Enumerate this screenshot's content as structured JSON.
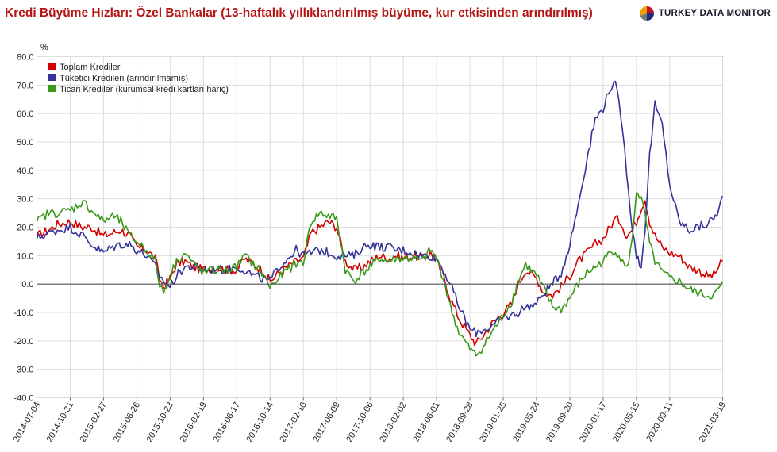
{
  "title": "Kredi Büyüme Hızları: Özel Bankalar (13-haftalık yıllıklandırılmış büyüme, kur etkisinden arındırılmış)",
  "brand": {
    "name": "TURKEY DATA MONITOR",
    "logo_icon": "pie-logo-icon",
    "logo_colors": [
      "#c8102e",
      "#1f2d7a",
      "#7a7a7a",
      "#f0a000"
    ]
  },
  "chart_data": {
    "type": "line",
    "title": "Kredi Büyüme Hızları: Özel Bankalar (13-haftalık yıllıklandırılmış büyüme, kur etkisinden arındırılmış)",
    "ylabel": "%",
    "xlabel": "",
    "ylim": [
      -40,
      80
    ],
    "yticks": [
      "80.0",
      "70.0",
      "60.0",
      "50.0",
      "40.0",
      "30.0",
      "20.0",
      "10.0",
      "0.0",
      "-10.0",
      "-20.0",
      "-30.0",
      "-40.0"
    ],
    "xlim": [
      "2014-07-04",
      "2021-03-19"
    ],
    "xticks": [
      "2014-07-04",
      "2014-10-31",
      "2015-02-27",
      "2015-06-26",
      "2015-10-23",
      "2016-02-19",
      "2016-06-17",
      "2016-10-14",
      "2017-02-10",
      "2017-06-09",
      "2017-10-06",
      "2018-02-02",
      "2018-06-01",
      "2018-09-28",
      "2019-01-25",
      "2019-05-24",
      "2019-09-20",
      "2020-01-17",
      "2020-05-15",
      "2020-09-11",
      "2021-03-19"
    ],
    "grid": true,
    "legend_position": "top-left",
    "series": [
      {
        "name": "Toplam Krediler",
        "color": "#d40000",
        "points": [
          [
            "2014-07-04",
            17
          ],
          [
            "2014-08-15",
            19
          ],
          [
            "2014-09-15",
            21
          ],
          [
            "2014-10-31",
            22
          ],
          [
            "2014-12-15",
            20
          ],
          [
            "2015-01-15",
            20
          ],
          [
            "2015-02-27",
            17
          ],
          [
            "2015-03-31",
            18
          ],
          [
            "2015-04-30",
            19
          ],
          [
            "2015-05-31",
            17
          ],
          [
            "2015-06-26",
            13
          ],
          [
            "2015-07-31",
            12
          ],
          [
            "2015-08-31",
            9
          ],
          [
            "2015-09-15",
            2
          ],
          [
            "2015-09-30",
            -1
          ],
          [
            "2015-10-23",
            2
          ],
          [
            "2015-11-15",
            7
          ],
          [
            "2015-12-15",
            8
          ],
          [
            "2016-01-15",
            6
          ],
          [
            "2016-02-19",
            5
          ],
          [
            "2016-03-31",
            6
          ],
          [
            "2016-05-15",
            5
          ],
          [
            "2016-06-17",
            5
          ],
          [
            "2016-07-15",
            9
          ],
          [
            "2016-08-15",
            7
          ],
          [
            "2016-09-15",
            5
          ],
          [
            "2016-10-14",
            1
          ],
          [
            "2016-11-15",
            4
          ],
          [
            "2016-12-15",
            6
          ],
          [
            "2017-01-15",
            8
          ],
          [
            "2017-02-10",
            9
          ],
          [
            "2017-03-10",
            18
          ],
          [
            "2017-04-10",
            20
          ],
          [
            "2017-05-10",
            22
          ],
          [
            "2017-06-09",
            20
          ],
          [
            "2017-07-10",
            8
          ],
          [
            "2017-08-10",
            5
          ],
          [
            "2017-09-10",
            6
          ],
          [
            "2017-10-06",
            8
          ],
          [
            "2017-11-10",
            10
          ],
          [
            "2017-12-10",
            9
          ],
          [
            "2018-01-10",
            10
          ],
          [
            "2018-02-02",
            9
          ],
          [
            "2018-03-10",
            10
          ],
          [
            "2018-04-10",
            9
          ],
          [
            "2018-05-10",
            11
          ],
          [
            "2018-06-01",
            8
          ],
          [
            "2018-06-25",
            3
          ],
          [
            "2018-07-20",
            -5
          ],
          [
            "2018-08-20",
            -12
          ],
          [
            "2018-09-28",
            -18
          ],
          [
            "2018-10-20",
            -21
          ],
          [
            "2018-11-15",
            -18
          ],
          [
            "2018-12-15",
            -14
          ],
          [
            "2019-01-25",
            -10
          ],
          [
            "2019-02-25",
            -7
          ],
          [
            "2019-03-20",
            0
          ],
          [
            "2019-04-15",
            5
          ],
          [
            "2019-05-24",
            2
          ],
          [
            "2019-06-20",
            -3
          ],
          [
            "2019-07-20",
            -4
          ],
          [
            "2019-08-20",
            -1
          ],
          [
            "2019-09-20",
            3
          ],
          [
            "2019-10-20",
            8
          ],
          [
            "2019-11-20",
            11
          ],
          [
            "2019-12-20",
            14
          ],
          [
            "2020-01-17",
            16
          ],
          [
            "2020-02-10",
            20
          ],
          [
            "2020-03-01",
            23
          ],
          [
            "2020-03-20",
            22
          ],
          [
            "2020-04-10",
            17
          ],
          [
            "2020-04-30",
            19
          ],
          [
            "2020-05-15",
            22
          ],
          [
            "2020-06-01",
            27
          ],
          [
            "2020-06-15",
            30
          ],
          [
            "2020-07-01",
            22
          ],
          [
            "2020-07-20",
            17
          ],
          [
            "2020-08-15",
            13
          ],
          [
            "2020-09-11",
            11
          ],
          [
            "2020-10-15",
            10
          ],
          [
            "2020-11-20",
            6
          ],
          [
            "2020-12-20",
            5
          ],
          [
            "2021-01-20",
            3
          ],
          [
            "2021-02-15",
            3
          ],
          [
            "2021-03-05",
            6
          ],
          [
            "2021-03-19",
            8
          ]
        ]
      },
      {
        "name": "Tüketici Kredileri (arındırılmamış)",
        "color": "#333399",
        "points": [
          [
            "2014-07-04",
            16
          ],
          [
            "2014-08-15",
            18
          ],
          [
            "2014-09-15",
            19
          ],
          [
            "2014-10-31",
            20
          ],
          [
            "2014-12-15",
            17
          ],
          [
            "2015-01-15",
            14
          ],
          [
            "2015-02-27",
            11
          ],
          [
            "2015-03-31",
            13
          ],
          [
            "2015-04-30",
            14
          ],
          [
            "2015-05-31",
            14
          ],
          [
            "2015-06-26",
            12
          ],
          [
            "2015-07-31",
            10
          ],
          [
            "2015-08-31",
            6
          ],
          [
            "2015-09-15",
            3
          ],
          [
            "2015-09-30",
            1
          ],
          [
            "2015-10-23",
            -1
          ],
          [
            "2015-11-15",
            3
          ],
          [
            "2015-12-15",
            6
          ],
          [
            "2016-01-15",
            6
          ],
          [
            "2016-02-19",
            5
          ],
          [
            "2016-03-31",
            5
          ],
          [
            "2016-05-15",
            5
          ],
          [
            "2016-06-17",
            6
          ],
          [
            "2016-07-15",
            5
          ],
          [
            "2016-08-15",
            3
          ],
          [
            "2016-09-15",
            2
          ],
          [
            "2016-10-14",
            1
          ],
          [
            "2016-11-15",
            6
          ],
          [
            "2016-12-15",
            9
          ],
          [
            "2017-01-15",
            12
          ],
          [
            "2017-02-10",
            10
          ],
          [
            "2017-03-10",
            11
          ],
          [
            "2017-04-10",
            12
          ],
          [
            "2017-05-10",
            11
          ],
          [
            "2017-06-09",
            10
          ],
          [
            "2017-07-10",
            10
          ],
          [
            "2017-08-10",
            10
          ],
          [
            "2017-09-10",
            13
          ],
          [
            "2017-10-06",
            14
          ],
          [
            "2017-11-10",
            13
          ],
          [
            "2017-12-10",
            13
          ],
          [
            "2018-01-10",
            12
          ],
          [
            "2018-02-02",
            12
          ],
          [
            "2018-03-10",
            11
          ],
          [
            "2018-04-10",
            10
          ],
          [
            "2018-05-10",
            10
          ],
          [
            "2018-06-01",
            9
          ],
          [
            "2018-06-25",
            5
          ],
          [
            "2018-07-20",
            0
          ],
          [
            "2018-08-20",
            -8
          ],
          [
            "2018-09-28",
            -16
          ],
          [
            "2018-10-20",
            -17
          ],
          [
            "2018-11-15",
            -16
          ],
          [
            "2018-12-15",
            -15
          ],
          [
            "2019-01-25",
            -12
          ],
          [
            "2019-02-25",
            -11
          ],
          [
            "2019-03-20",
            -10
          ],
          [
            "2019-04-15",
            -8
          ],
          [
            "2019-05-24",
            -7
          ],
          [
            "2019-06-20",
            -3
          ],
          [
            "2019-07-20",
            0
          ],
          [
            "2019-08-20",
            4
          ],
          [
            "2019-09-20",
            14
          ],
          [
            "2019-10-20",
            28
          ],
          [
            "2019-11-20",
            44
          ],
          [
            "2019-12-20",
            58
          ],
          [
            "2020-01-17",
            62
          ],
          [
            "2020-02-10",
            69
          ],
          [
            "2020-03-01",
            70
          ],
          [
            "2020-03-20",
            60
          ],
          [
            "2020-04-10",
            40
          ],
          [
            "2020-04-30",
            20
          ],
          [
            "2020-05-15",
            10
          ],
          [
            "2020-06-01",
            6
          ],
          [
            "2020-06-15",
            20
          ],
          [
            "2020-07-01",
            45
          ],
          [
            "2020-07-20",
            63
          ],
          [
            "2020-08-15",
            56
          ],
          [
            "2020-09-11",
            35
          ],
          [
            "2020-10-15",
            22
          ],
          [
            "2020-11-20",
            19
          ],
          [
            "2020-12-20",
            20
          ],
          [
            "2021-01-20",
            21
          ],
          [
            "2021-02-15",
            23
          ],
          [
            "2021-03-05",
            26
          ],
          [
            "2021-03-19",
            31
          ]
        ]
      },
      {
        "name": "Ticari Krediler (kurumsal kredi kartları hariç)",
        "color": "#3a9a1a",
        "points": [
          [
            "2014-07-04",
            22
          ],
          [
            "2014-08-15",
            25
          ],
          [
            "2014-09-15",
            25
          ],
          [
            "2014-10-31",
            26
          ],
          [
            "2014-12-15",
            29
          ],
          [
            "2015-01-15",
            26
          ],
          [
            "2015-02-27",
            22
          ],
          [
            "2015-03-31",
            24
          ],
          [
            "2015-04-30",
            22
          ],
          [
            "2015-05-31",
            17
          ],
          [
            "2015-06-26",
            15
          ],
          [
            "2015-07-31",
            12
          ],
          [
            "2015-08-31",
            8
          ],
          [
            "2015-09-15",
            0
          ],
          [
            "2015-09-30",
            -3
          ],
          [
            "2015-10-23",
            3
          ],
          [
            "2015-11-15",
            8
          ],
          [
            "2015-12-15",
            11
          ],
          [
            "2016-01-15",
            7
          ],
          [
            "2016-02-19",
            4
          ],
          [
            "2016-03-31",
            5
          ],
          [
            "2016-05-15",
            5
          ],
          [
            "2016-06-17",
            6
          ],
          [
            "2016-07-15",
            10
          ],
          [
            "2016-08-15",
            7
          ],
          [
            "2016-09-15",
            4
          ],
          [
            "2016-10-14",
            -1
          ],
          [
            "2016-11-15",
            2
          ],
          [
            "2016-12-15",
            5
          ],
          [
            "2017-01-15",
            7
          ],
          [
            "2017-02-10",
            8
          ],
          [
            "2017-03-10",
            22
          ],
          [
            "2017-04-10",
            25
          ],
          [
            "2017-05-10",
            24
          ],
          [
            "2017-06-09",
            23
          ],
          [
            "2017-07-10",
            5
          ],
          [
            "2017-08-10",
            1
          ],
          [
            "2017-09-10",
            4
          ],
          [
            "2017-10-06",
            6
          ],
          [
            "2017-11-10",
            9
          ],
          [
            "2017-12-10",
            8
          ],
          [
            "2018-01-10",
            9
          ],
          [
            "2018-02-02",
            9
          ],
          [
            "2018-03-10",
            9
          ],
          [
            "2018-04-10",
            8
          ],
          [
            "2018-05-10",
            12
          ],
          [
            "2018-06-01",
            9
          ],
          [
            "2018-06-25",
            2
          ],
          [
            "2018-07-20",
            -8
          ],
          [
            "2018-08-20",
            -17
          ],
          [
            "2018-09-28",
            -23
          ],
          [
            "2018-10-20",
            -25
          ],
          [
            "2018-11-15",
            -22
          ],
          [
            "2018-12-15",
            -17
          ],
          [
            "2019-01-25",
            -11
          ],
          [
            "2019-02-25",
            -6
          ],
          [
            "2019-03-20",
            1
          ],
          [
            "2019-04-15",
            7
          ],
          [
            "2019-05-24",
            3
          ],
          [
            "2019-06-20",
            -2
          ],
          [
            "2019-07-20",
            -8
          ],
          [
            "2019-08-20",
            -9
          ],
          [
            "2019-09-20",
            -5
          ],
          [
            "2019-10-20",
            0
          ],
          [
            "2019-11-20",
            4
          ],
          [
            "2019-12-20",
            6
          ],
          [
            "2020-01-17",
            8
          ],
          [
            "2020-02-10",
            11
          ],
          [
            "2020-03-01",
            12
          ],
          [
            "2020-03-20",
            9
          ],
          [
            "2020-04-10",
            5
          ],
          [
            "2020-04-30",
            15
          ],
          [
            "2020-05-15",
            33
          ],
          [
            "2020-06-01",
            30
          ],
          [
            "2020-06-15",
            24
          ],
          [
            "2020-07-01",
            14
          ],
          [
            "2020-07-20",
            8
          ],
          [
            "2020-08-15",
            4
          ],
          [
            "2020-09-11",
            2
          ],
          [
            "2020-10-15",
            1
          ],
          [
            "2020-11-20",
            -2
          ],
          [
            "2020-12-20",
            -3
          ],
          [
            "2021-01-20",
            -4
          ],
          [
            "2021-02-15",
            -4
          ],
          [
            "2021-03-05",
            -2
          ],
          [
            "2021-03-19",
            1
          ]
        ]
      }
    ]
  }
}
